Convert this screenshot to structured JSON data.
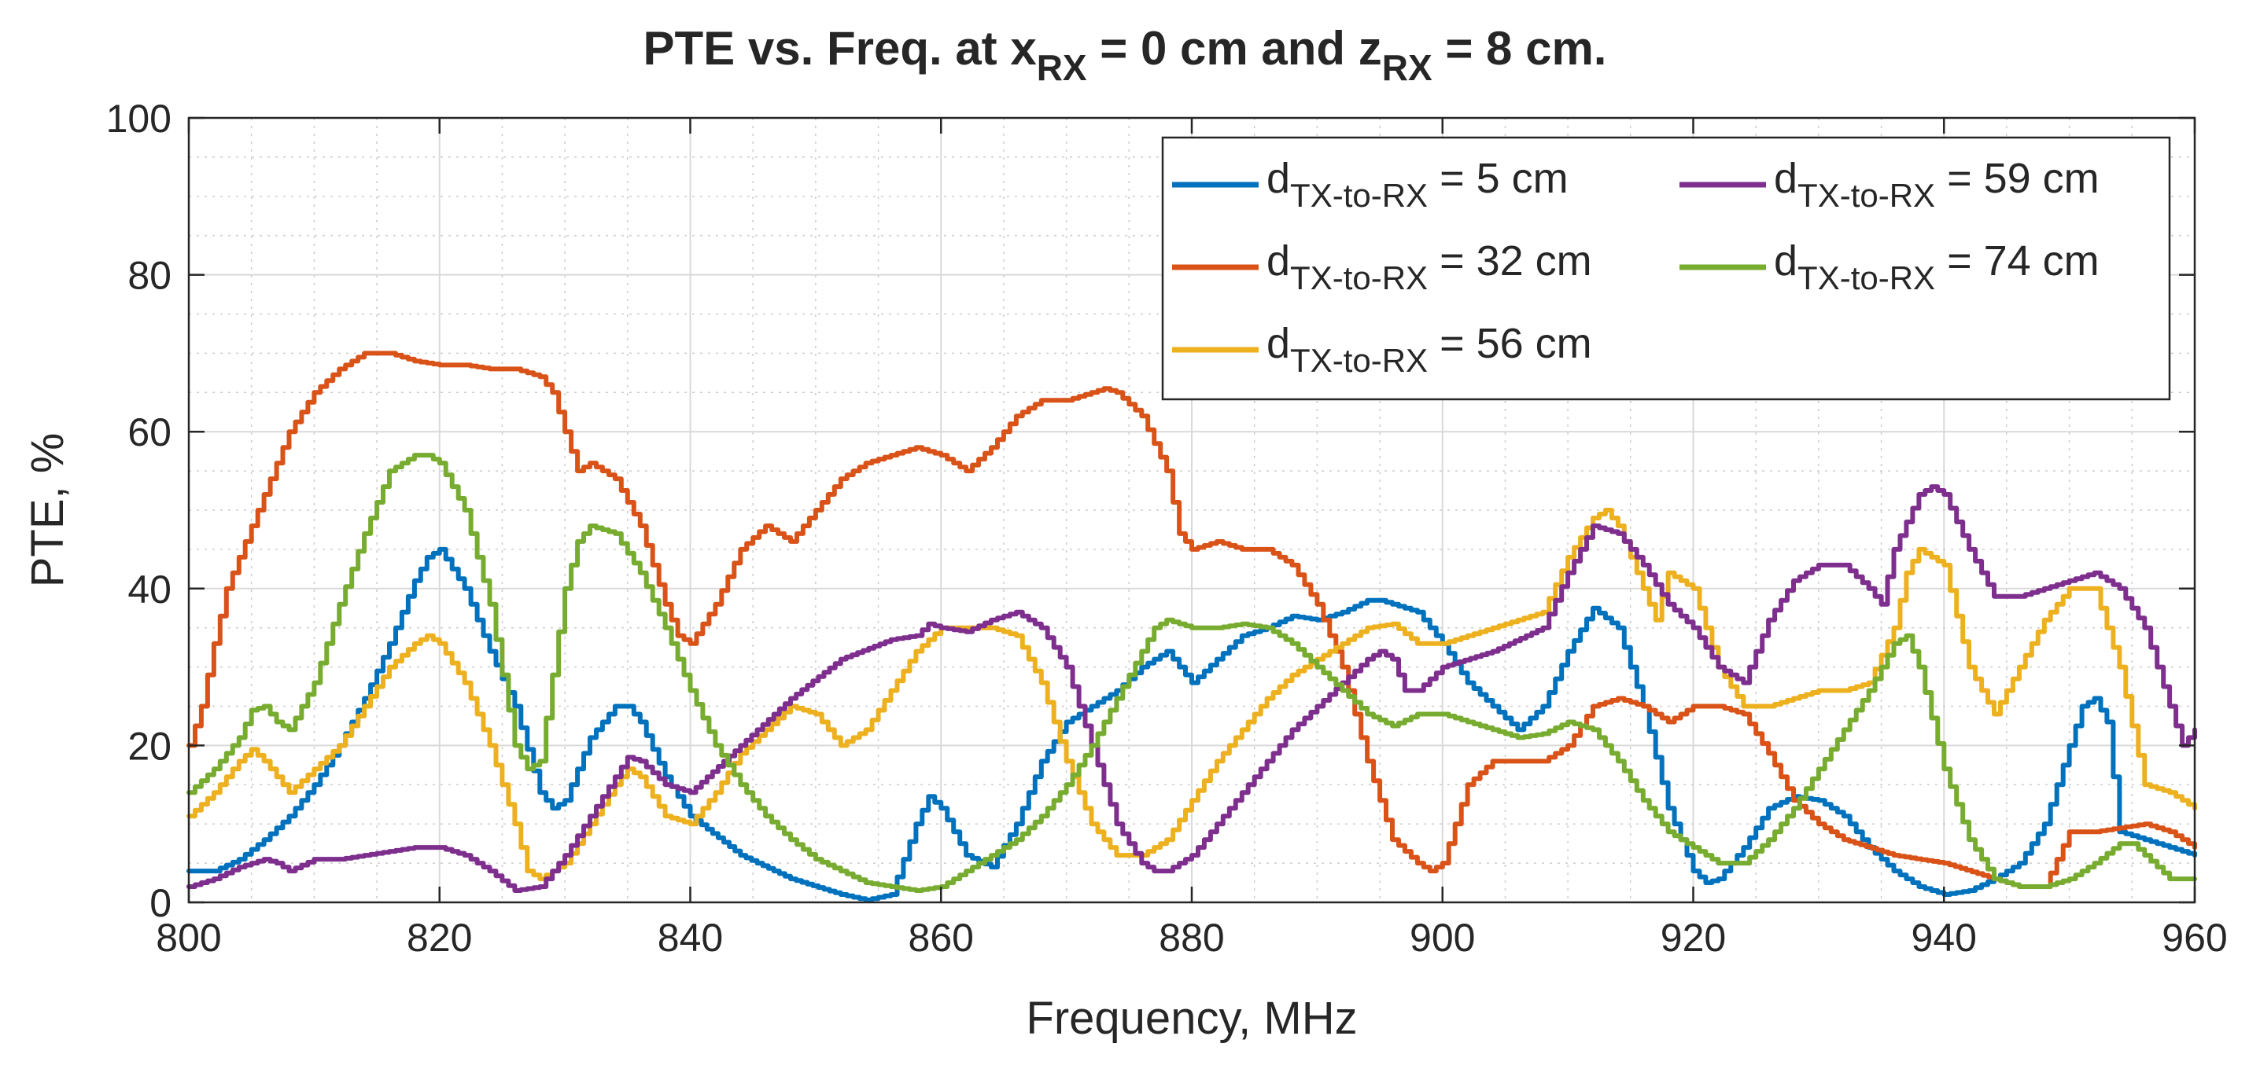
{
  "chart_data": {
    "type": "line",
    "title": {
      "prefix": "PTE vs. Freq. at x",
      "sub1": "RX",
      "mid": " = 0 cm and z",
      "sub2": "RX",
      "suffix": " = 8 cm."
    },
    "xlabel": "Frequency, MHz",
    "ylabel": "PTE, %",
    "xlim": [
      800,
      960
    ],
    "ylim": [
      0,
      100
    ],
    "xticks": [
      800,
      820,
      840,
      860,
      880,
      900,
      920,
      940,
      960
    ],
    "yticks": [
      0,
      20,
      40,
      60,
      80,
      100
    ],
    "grid": true,
    "minor_grid": true,
    "legend_position": "top-right",
    "series": [
      {
        "name": "d_TX-to-RX = 5 cm",
        "label_base": "d",
        "label_sub": "TX-to-RX",
        "label_rest": " = 5 cm",
        "color": "#0072BD",
        "x": [
          800,
          802,
          804,
          806,
          808,
          810,
          812,
          814,
          816,
          818,
          819,
          820,
          822,
          824,
          826,
          828,
          829,
          830,
          832,
          834,
          835,
          836,
          838,
          840,
          844,
          848,
          852,
          854,
          856,
          858,
          859,
          860,
          862,
          864,
          866,
          868,
          870,
          872,
          874,
          876,
          877,
          878,
          879,
          880,
          882,
          884,
          886,
          888,
          890,
          892,
          894,
          895,
          896,
          898,
          900,
          902,
          904,
          906,
          908,
          910,
          912,
          914,
          916,
          918,
          920,
          921,
          922,
          924,
          926,
          928,
          930,
          932,
          934,
          936,
          938,
          940,
          942,
          944,
          946,
          948,
          950,
          951,
          952,
          953,
          954,
          956,
          958,
          960
        ],
        "y": [
          4,
          4,
          5.5,
          8,
          11,
          15,
          20,
          26,
          33,
          41,
          44,
          45,
          40,
          32,
          25,
          14,
          12,
          13,
          21,
          25,
          25,
          23,
          16,
          11,
          6,
          3,
          1,
          0.3,
          1,
          10,
          13.5,
          12,
          6,
          4.5,
          10,
          18,
          23,
          25,
          27,
          30,
          31,
          32,
          30,
          28,
          31,
          34,
          35,
          36.5,
          36,
          37,
          38.5,
          38.5,
          38,
          37,
          33,
          28,
          25,
          22,
          25,
          32,
          37.5,
          35,
          25,
          12,
          4,
          2.5,
          3,
          7,
          12,
          13.5,
          13,
          11,
          7,
          4,
          2,
          1,
          1.5,
          3,
          5,
          10,
          20,
          25,
          26,
          23,
          9,
          8,
          7,
          6
        ]
      },
      {
        "name": "d_TX-to-RX = 32 cm",
        "label_base": "d",
        "label_sub": "TX-to-RX",
        "label_rest": " = 32 cm",
        "color": "#D95319",
        "x": [
          800,
          801,
          802,
          803,
          804,
          806,
          808,
          810,
          812,
          814,
          816,
          818,
          820,
          822,
          824,
          826,
          828,
          829,
          830,
          831,
          832,
          834,
          836,
          838,
          839,
          840,
          842,
          844,
          846,
          848,
          850,
          852,
          854,
          856,
          858,
          860,
          861,
          862,
          864,
          866,
          868,
          870,
          872,
          873,
          874,
          876,
          878,
          879,
          880,
          882,
          884,
          886,
          888,
          890,
          892,
          894,
          896,
          898,
          899,
          900,
          902,
          904,
          906,
          908,
          910,
          912,
          914,
          916,
          918,
          920,
          922,
          924,
          926,
          928,
          930,
          932,
          936,
          940,
          944,
          946,
          948,
          950,
          952,
          954,
          956,
          958,
          960
        ],
        "y": [
          20,
          25,
          33,
          40,
          44,
          52,
          60,
          65,
          68,
          70,
          70,
          69,
          68.5,
          68.5,
          68,
          68,
          67,
          65,
          60,
          55,
          56,
          54,
          48,
          38,
          34,
          33,
          38,
          45,
          48,
          46,
          50,
          54,
          56,
          57,
          58,
          57,
          56,
          55,
          58,
          62,
          64,
          64,
          65,
          65.5,
          65,
          62,
          55,
          47,
          45,
          46,
          45,
          45,
          43,
          38,
          30,
          18,
          8,
          5,
          4,
          5,
          15,
          18,
          18,
          18,
          20,
          25,
          26,
          25,
          23,
          25,
          25,
          24,
          19,
          13,
          10,
          8,
          6,
          5,
          3,
          2,
          2,
          9,
          9,
          9.5,
          10,
          9,
          7
        ]
      },
      {
        "name": "d_TX-to-RX = 56 cm",
        "label_base": "d",
        "label_sub": "TX-to-RX",
        "label_rest": " = 56 cm",
        "color": "#EDB120",
        "x": [
          800,
          802,
          804,
          805,
          806,
          808,
          810,
          812,
          814,
          816,
          818,
          819,
          820,
          822,
          824,
          826,
          827,
          828,
          830,
          832,
          834,
          835,
          836,
          838,
          840,
          842,
          844,
          846,
          848,
          850,
          852,
          854,
          856,
          858,
          860,
          862,
          864,
          866,
          868,
          870,
          872,
          874,
          876,
          878,
          880,
          882,
          884,
          886,
          888,
          890,
          892,
          894,
          896,
          898,
          900,
          902,
          904,
          906,
          908,
          910,
          912,
          913,
          914,
          916,
          917,
          918,
          920,
          922,
          924,
          926,
          928,
          930,
          932,
          934,
          936,
          937,
          938,
          940,
          942,
          944,
          946,
          948,
          950,
          952,
          954,
          956,
          958,
          960
        ],
        "y": [
          11,
          14,
          18,
          19.5,
          18,
          14,
          17,
          20,
          25,
          30,
          33,
          34,
          33,
          28,
          20,
          10,
          4,
          3,
          5,
          10,
          15,
          17,
          16,
          11,
          10,
          14,
          19,
          22,
          25,
          24,
          20,
          22,
          27,
          32,
          35,
          35,
          35,
          34,
          28,
          18,
          10,
          6,
          6,
          8,
          13,
          18,
          22,
          26,
          29,
          31,
          33,
          35,
          35.5,
          33,
          33,
          34,
          35,
          36,
          37,
          44,
          49,
          50,
          48,
          40,
          36,
          42,
          40,
          30,
          25,
          25,
          26,
          27,
          27,
          28,
          35,
          42,
          45,
          43,
          30,
          24,
          30,
          36,
          40,
          40,
          30,
          15,
          14,
          12
        ]
      },
      {
        "name": "d_TX-to-RX = 59 cm",
        "label_base": "d",
        "label_sub": "TX-to-RX",
        "label_rest": " = 59 cm",
        "color": "#7E2F8E",
        "x": [
          800,
          802,
          804,
          806,
          807,
          808,
          810,
          812,
          814,
          816,
          818,
          820,
          822,
          824,
          826,
          828,
          830,
          832,
          834,
          835,
          836,
          838,
          840,
          844,
          848,
          852,
          856,
          858,
          859,
          860,
          862,
          864,
          866,
          868,
          870,
          872,
          874,
          876,
          877,
          878,
          880,
          882,
          884,
          886,
          888,
          890,
          892,
          894,
          895,
          896,
          897,
          898,
          900,
          904,
          908,
          910,
          912,
          914,
          916,
          918,
          920,
          922,
          924,
          926,
          928,
          930,
          932,
          934,
          935,
          936,
          938,
          939,
          940,
          942,
          944,
          946,
          948,
          950,
          952,
          954,
          956,
          958,
          959,
          960
        ],
        "y": [
          2,
          3,
          4.5,
          5.5,
          5,
          4,
          5.5,
          5.5,
          6,
          6.5,
          7,
          7,
          6,
          4,
          1.5,
          2,
          6,
          11,
          16,
          18.5,
          18,
          15,
          14,
          20,
          26,
          31,
          33.5,
          34,
          35.5,
          35,
          34.5,
          36,
          37,
          35,
          30,
          20,
          10,
          5,
          4,
          4,
          6,
          10,
          14,
          18,
          22,
          25,
          28,
          31,
          32,
          31,
          27,
          27,
          30,
          32,
          35,
          42,
          48,
          47,
          43,
          38,
          35,
          30,
          28,
          36,
          41,
          43,
          43,
          40,
          38,
          45,
          52,
          53,
          52,
          45,
          39,
          39,
          40,
          41,
          42,
          40,
          35,
          25,
          20,
          22
        ]
      },
      {
        "name": "d_TX-to-RX = 74 cm",
        "label_base": "d",
        "label_sub": "TX-to-RX",
        "label_rest": " = 74 cm",
        "color": "#77AC30",
        "x": [
          800,
          802,
          804,
          805,
          806,
          807,
          808,
          810,
          812,
          814,
          816,
          818,
          819,
          820,
          822,
          824,
          826,
          827,
          828,
          830,
          831,
          832,
          834,
          836,
          838,
          840,
          842,
          844,
          846,
          848,
          850,
          852,
          854,
          856,
          858,
          860,
          862,
          864,
          866,
          868,
          870,
          872,
          874,
          876,
          877,
          878,
          880,
          882,
          884,
          886,
          888,
          890,
          892,
          894,
          896,
          898,
          900,
          902,
          904,
          906,
          908,
          910,
          912,
          914,
          916,
          918,
          920,
          922,
          924,
          926,
          928,
          930,
          932,
          934,
          936,
          937,
          938,
          940,
          942,
          944,
          946,
          948,
          950,
          952,
          954,
          955,
          956,
          958,
          960
        ],
        "y": [
          14,
          17,
          21,
          24.5,
          25,
          23,
          22,
          28,
          38,
          47,
          55,
          57,
          57,
          56,
          50,
          38,
          20,
          17,
          18,
          40,
          46,
          48,
          47,
          42,
          35,
          27,
          20,
          15,
          11,
          8,
          5.5,
          4,
          2.5,
          2,
          1.5,
          2,
          4,
          6,
          8,
          11,
          15,
          20,
          26,
          32,
          35,
          36,
          35,
          35,
          35.5,
          35,
          33,
          30,
          27,
          24,
          22.5,
          24,
          24,
          23,
          22,
          21,
          21.5,
          23,
          22,
          18,
          13,
          9,
          7,
          5,
          5,
          8,
          12,
          17,
          22,
          27,
          33,
          34,
          30,
          17,
          8,
          3,
          2,
          2,
          3,
          5,
          7.5,
          7.5,
          6,
          3,
          3
        ]
      }
    ]
  }
}
